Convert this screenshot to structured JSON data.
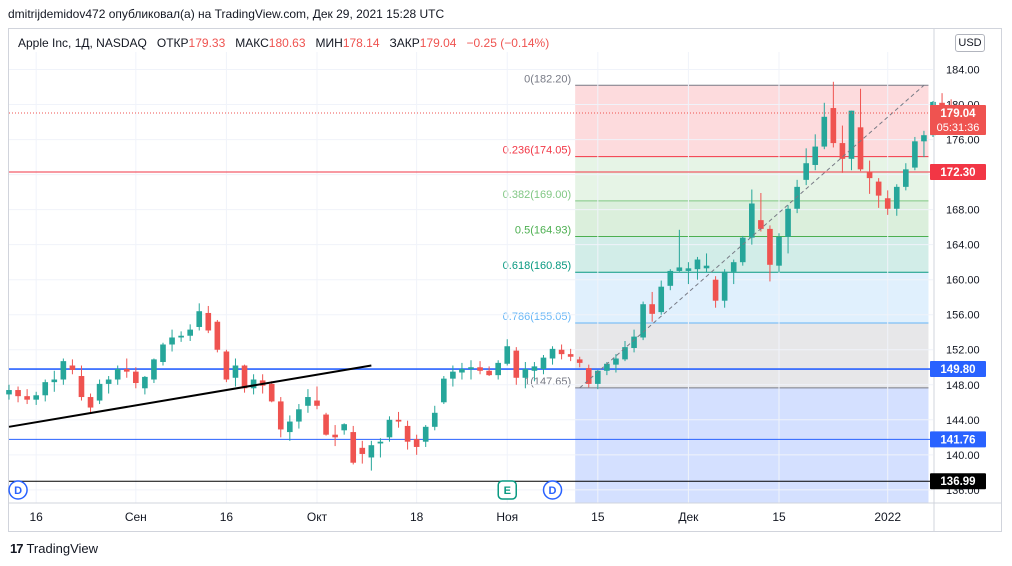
{
  "header": {
    "publisher_line": "dmitrijdemidov472 опубликовал(а) на TradingView.com, Дек 29, 2021 15:28 UTC"
  },
  "legend": {
    "symbol": "Apple Inc, 1Д, NASDAQ",
    "open_label": "ОТКР",
    "open_value": "179.33",
    "high_label": "МАКС",
    "high_value": "180.63",
    "low_label": "МИН",
    "low_value": "178.14",
    "close_label": "ЗАКР",
    "close_value": "179.04",
    "change": "−0.25 (−0.14%)"
  },
  "currency_button": "USD",
  "footer": {
    "logo": "17",
    "brand": "TradingView"
  },
  "colors": {
    "up": "#26a69a",
    "down": "#ef5350",
    "blue_line": "#2962ff",
    "red_line": "#f23645"
  },
  "chart_data": {
    "type": "candlestick",
    "ylim": [
      134.5,
      186.0
    ],
    "price_axis_ticks": [
      "184.00",
      "180.00",
      "176.00",
      "172.00",
      "168.00",
      "164.00",
      "160.00",
      "156.00",
      "152.00",
      "148.00",
      "144.00",
      "140.00",
      "136.00"
    ],
    "time_axis": [
      {
        "label": "16",
        "index": 3
      },
      {
        "label": "Сен",
        "index": 14
      },
      {
        "label": "16",
        "index": 24
      },
      {
        "label": "Окт",
        "index": 34
      },
      {
        "label": "18",
        "index": 45
      },
      {
        "label": "Ноя",
        "index": 55
      },
      {
        "label": "15",
        "index": 65
      },
      {
        "label": "Дек",
        "index": 75
      },
      {
        "label": "15",
        "index": 85
      },
      {
        "label": "2022",
        "index": 97
      }
    ],
    "x_range": [
      0,
      102
    ],
    "candles": [
      [
        146.9,
        148.0,
        146.3,
        147.4
      ],
      [
        147.4,
        147.8,
        146.0,
        146.7
      ],
      [
        146.7,
        147.5,
        145.8,
        146.3
      ],
      [
        146.3,
        147.2,
        145.7,
        146.8
      ],
      [
        146.8,
        148.6,
        146.1,
        148.3
      ],
      [
        148.3,
        149.6,
        147.2,
        148.6
      ],
      [
        148.6,
        151.0,
        148.0,
        150.7
      ],
      [
        150.2,
        150.9,
        149.2,
        149.7
      ],
      [
        149.0,
        150.2,
        146.2,
        146.6
      ],
      [
        146.6,
        147.0,
        144.8,
        145.4
      ],
      [
        146.2,
        148.6,
        145.8,
        148.1
      ],
      [
        148.1,
        149.0,
        147.0,
        148.6
      ],
      [
        148.6,
        150.2,
        148.0,
        149.8
      ],
      [
        149.8,
        151.0,
        148.8,
        149.5
      ],
      [
        149.5,
        150.0,
        147.6,
        148.2
      ],
      [
        147.6,
        149.0,
        146.9,
        148.9
      ],
      [
        148.6,
        151.0,
        148.2,
        150.9
      ],
      [
        150.6,
        152.8,
        150.2,
        152.6
      ],
      [
        152.6,
        154.3,
        151.8,
        153.4
      ],
      [
        153.4,
        154.1,
        152.9,
        153.6
      ],
      [
        153.6,
        154.9,
        153.0,
        154.3
      ],
      [
        154.6,
        157.3,
        154.2,
        156.4
      ],
      [
        156.2,
        157.0,
        153.9,
        154.2
      ],
      [
        155.2,
        155.4,
        151.7,
        152.0
      ],
      [
        151.8,
        152.0,
        148.3,
        148.6
      ],
      [
        148.8,
        151.0,
        147.8,
        150.2
      ],
      [
        150.2,
        150.3,
        147.1,
        147.6
      ],
      [
        147.6,
        149.2,
        146.9,
        148.6
      ],
      [
        148.5,
        149.2,
        147.0,
        147.9
      ],
      [
        148.1,
        148.4,
        146.0,
        146.1
      ],
      [
        146.1,
        146.6,
        142.0,
        142.9
      ],
      [
        142.6,
        144.5,
        141.6,
        143.8
      ],
      [
        143.8,
        145.8,
        143.0,
        145.2
      ],
      [
        145.6,
        147.5,
        144.8,
        146.6
      ],
      [
        146.2,
        147.8,
        145.2,
        145.6
      ],
      [
        144.6,
        144.8,
        142.2,
        142.3
      ],
      [
        142.3,
        143.4,
        141.0,
        142.0
      ],
      [
        142.8,
        143.6,
        142.3,
        143.5
      ],
      [
        142.6,
        143.3,
        138.9,
        139.1
      ],
      [
        140.8,
        141.6,
        139.0,
        140.1
      ],
      [
        139.7,
        141.6,
        138.2,
        141.1
      ],
      [
        141.3,
        141.9,
        139.7,
        141.5
      ],
      [
        142.0,
        144.4,
        141.5,
        144.0
      ],
      [
        144.0,
        144.9,
        143.1,
        143.8
      ],
      [
        143.3,
        143.9,
        140.6,
        141.5
      ],
      [
        141.8,
        142.3,
        140.0,
        140.9
      ],
      [
        141.5,
        143.4,
        140.9,
        143.2
      ],
      [
        143.2,
        145.6,
        142.8,
        144.8
      ],
      [
        146.0,
        149.0,
        145.8,
        148.7
      ],
      [
        148.7,
        150.2,
        147.8,
        149.5
      ],
      [
        149.4,
        150.5,
        148.6,
        149.8
      ],
      [
        149.8,
        150.8,
        148.6,
        150.0
      ],
      [
        150.0,
        150.7,
        149.2,
        149.6
      ],
      [
        149.6,
        150.1,
        149.0,
        149.1
      ],
      [
        149.1,
        150.8,
        148.6,
        150.5
      ],
      [
        150.4,
        153.2,
        150.2,
        152.4
      ],
      [
        151.9,
        152.3,
        148.0,
        148.8
      ],
      [
        148.8,
        150.6,
        147.6,
        149.8
      ],
      [
        149.6,
        150.6,
        148.4,
        150.1
      ],
      [
        149.8,
        151.4,
        149.2,
        151.1
      ],
      [
        151.0,
        152.4,
        150.3,
        152.1
      ],
      [
        152.0,
        152.6,
        150.9,
        151.5
      ],
      [
        151.5,
        152.1,
        150.7,
        151.2
      ],
      [
        150.9,
        151.2,
        150.0,
        150.5
      ],
      [
        149.9,
        150.3,
        147.7,
        148.1
      ],
      [
        148.1,
        149.7,
        147.5,
        149.6
      ],
      [
        149.6,
        150.6,
        149.1,
        150.4
      ],
      [
        150.3,
        151.5,
        149.4,
        151.0
      ],
      [
        150.9,
        153.0,
        150.7,
        152.3
      ],
      [
        152.2,
        154.3,
        151.7,
        153.5
      ],
      [
        153.4,
        157.5,
        153.1,
        157.2
      ],
      [
        157.2,
        158.6,
        155.2,
        156.1
      ],
      [
        156.3,
        159.9,
        156.0,
        159.2
      ],
      [
        159.3,
        161.2,
        158.8,
        161.0
      ],
      [
        161.0,
        165.7,
        160.9,
        161.4
      ],
      [
        161.0,
        162.0,
        159.5,
        161.3
      ],
      [
        161.2,
        162.6,
        160.0,
        162.3
      ],
      [
        161.3,
        163.0,
        160.8,
        161.6
      ],
      [
        160.0,
        160.4,
        156.8,
        157.6
      ],
      [
        157.6,
        161.2,
        156.8,
        160.9
      ],
      [
        160.9,
        162.3,
        159.5,
        162.0
      ],
      [
        162.0,
        165.0,
        161.6,
        164.8
      ],
      [
        164.8,
        170.3,
        164.0,
        168.7
      ],
      [
        166.8,
        169.9,
        165.5,
        165.8
      ],
      [
        165.8,
        166.2,
        159.8,
        161.7
      ],
      [
        161.6,
        165.3,
        160.9,
        164.9
      ],
      [
        164.9,
        168.5,
        163.0,
        168.1
      ],
      [
        168.1,
        171.4,
        167.6,
        170.6
      ],
      [
        171.4,
        175.0,
        170.8,
        173.3
      ],
      [
        173.1,
        176.6,
        172.5,
        175.2
      ],
      [
        175.2,
        180.2,
        174.9,
        178.6
      ],
      [
        179.6,
        182.6,
        175.1,
        175.6
      ],
      [
        175.6,
        177.6,
        172.2,
        173.8
      ],
      [
        173.8,
        179.3,
        172.5,
        179.3
      ],
      [
        177.4,
        181.8,
        172.4,
        172.6
      ],
      [
        172.3,
        173.6,
        169.8,
        171.6
      ],
      [
        171.2,
        171.6,
        168.2,
        169.6
      ],
      [
        169.3,
        170.2,
        167.4,
        168.1
      ],
      [
        168.1,
        170.9,
        167.3,
        170.6
      ],
      [
        170.6,
        173.3,
        170.2,
        172.6
      ],
      [
        172.8,
        176.3,
        172.5,
        175.8
      ],
      [
        175.8,
        177.0,
        174.0,
        176.5
      ],
      [
        176.5,
        180.4,
        176.3,
        180.3
      ],
      [
        180.2,
        181.3,
        178.3,
        179.3
      ],
      [
        179.3,
        180.6,
        178.1,
        179.0
      ]
    ],
    "fibonacci": {
      "levels": [
        {
          "label": "0(182.20)",
          "ratio": 0,
          "price": 182.2,
          "color": "#787b86"
        },
        {
          "label": "0.236(174.05)",
          "ratio": 0.236,
          "price": 174.05,
          "color": "#f23645"
        },
        {
          "label": "0.382(169.00)",
          "ratio": 0.382,
          "price": 169.0,
          "color": "#81c784"
        },
        {
          "label": "0.5(164.93)",
          "ratio": 0.5,
          "price": 164.93,
          "color": "#4caf50"
        },
        {
          "label": "0.618(160.85)",
          "ratio": 0.618,
          "price": 160.85,
          "color": "#089981"
        },
        {
          "label": "0.786(155.05)",
          "ratio": 0.786,
          "price": 155.05,
          "color": "#64b5f6"
        },
        {
          "label": "1(147.65)",
          "ratio": 1,
          "price": 147.65,
          "color": "#787b86"
        }
      ],
      "start_index": 63,
      "end_index": 101
    },
    "horizontal_lines": [
      {
        "price": 172.3,
        "label": "172.30",
        "color": "#f23645"
      },
      {
        "price": 149.8,
        "label": "149.80",
        "color": "#2962ff"
      },
      {
        "price": 141.76,
        "label": "141.76",
        "color": "#2962ff"
      },
      {
        "price": 136.99,
        "label": "136.99",
        "color": "#000000"
      }
    ],
    "trendline": {
      "from": {
        "index": 0,
        "price": 143.2
      },
      "to": {
        "index": 40,
        "price": 150.2
      }
    },
    "current_price": {
      "label": "179.04",
      "countdown": "05:31:36",
      "price": 179.04
    },
    "event_markers": [
      {
        "label": "D",
        "index": 1
      },
      {
        "label": "E",
        "index": 55
      },
      {
        "label": "D",
        "index": 60
      }
    ]
  }
}
